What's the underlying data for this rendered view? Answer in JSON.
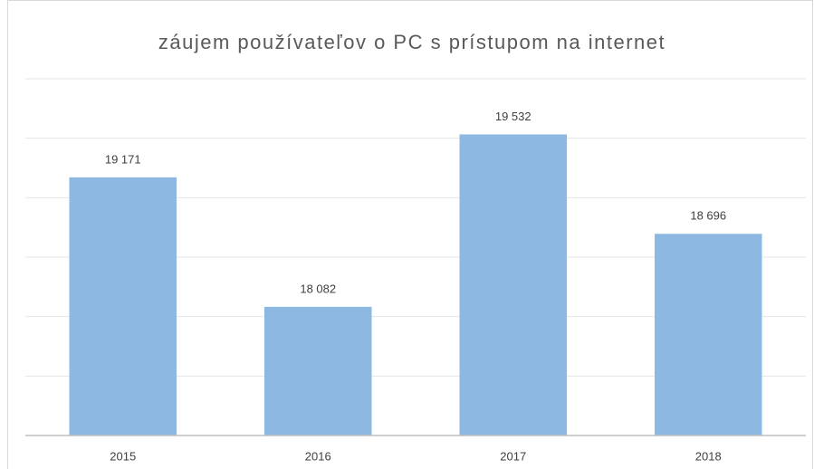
{
  "chart_data": {
    "type": "bar",
    "title": "záujem používateľov o PC s prístupom na internet",
    "categories": [
      "2015",
      "2016",
      "2017",
      "2018"
    ],
    "values": [
      19171,
      18082,
      19532,
      18696
    ],
    "value_labels": [
      "19 171",
      "18 082",
      "19 532",
      "18 696"
    ],
    "color": "#8cb8e2",
    "ylim": [
      17000,
      20000
    ],
    "yticks": [
      17000,
      17500,
      18000,
      18500,
      19000,
      19500,
      20000
    ],
    "grid": true
  }
}
